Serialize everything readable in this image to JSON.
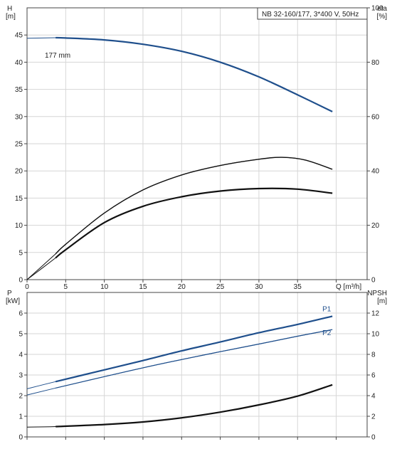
{
  "chart_data": [
    {
      "type": "line",
      "title": "NB 32-160/177, 3*400 V, 50Hz",
      "xlabel": "Q [m³/h]",
      "x_ticks": [
        0,
        5,
        10,
        15,
        20,
        25,
        30,
        35
      ],
      "xlim": [
        0,
        44
      ],
      "left_axis": {
        "label_top": "H",
        "label_unit": "[m]",
        "ylim": [
          0,
          50
        ],
        "ticks": [
          0,
          5,
          10,
          15,
          20,
          25,
          30,
          35,
          40,
          45
        ]
      },
      "right_axis": {
        "label_top": "eta",
        "label_unit": "[%]",
        "ylim": [
          0,
          100
        ],
        "ticks": [
          0,
          20,
          40,
          60,
          80,
          100
        ]
      },
      "grid": true,
      "annotations": [
        {
          "text": "177 mm"
        }
      ],
      "series": [
        {
          "axis": "left",
          "color": "#1f4f8c",
          "points": [
            [
              0,
              44.4
            ],
            [
              3.7,
              44.5
            ],
            [
              5,
              44.45
            ],
            [
              10,
              44.1
            ],
            [
              15,
              43.3
            ],
            [
              20,
              42.0
            ],
            [
              25,
              40.0
            ],
            [
              30,
              37.3
            ],
            [
              35,
              34.0
            ],
            [
              39.5,
              30.9
            ]
          ]
        },
        {
          "axis": "right",
          "color": "#111111",
          "points": [
            [
              0,
              0
            ],
            [
              3.7,
              9.5
            ],
            [
              5,
              13
            ],
            [
              10,
              24.5
            ],
            [
              15,
              33
            ],
            [
              20,
              38.5
            ],
            [
              25,
              42
            ],
            [
              30,
              44.3
            ],
            [
              33,
              45
            ],
            [
              36,
              44
            ],
            [
              39.5,
              40.6
            ]
          ]
        },
        {
          "axis": "right",
          "color": "#111111",
          "points": [
            [
              0,
              0
            ],
            [
              3.7,
              8
            ],
            [
              5,
              11
            ],
            [
              10,
              21
            ],
            [
              15,
              27
            ],
            [
              20,
              30.5
            ],
            [
              25,
              32.6
            ],
            [
              30,
              33.5
            ],
            [
              35,
              33.3
            ],
            [
              39.5,
              31.8
            ]
          ]
        }
      ]
    },
    {
      "type": "line",
      "xlim": [
        0,
        44
      ],
      "left_axis": {
        "label_top": "P",
        "label_unit": "[kW]",
        "ylim": [
          0,
          7
        ],
        "ticks": [
          0,
          1,
          2,
          3,
          4,
          5,
          6
        ]
      },
      "right_axis": {
        "label_top": "NPSH",
        "label_unit": "[m]",
        "ylim": [
          0,
          14
        ],
        "ticks": [
          0,
          2,
          4,
          6,
          8,
          10,
          12
        ]
      },
      "grid": true,
      "series": [
        {
          "name": "P1",
          "axis": "left",
          "color": "#1f4f8c",
          "points": [
            [
              0,
              2.33
            ],
            [
              3.7,
              2.68
            ],
            [
              10,
              3.25
            ],
            [
              15,
              3.7
            ],
            [
              20,
              4.17
            ],
            [
              25,
              4.6
            ],
            [
              30,
              5.05
            ],
            [
              35,
              5.45
            ],
            [
              39.5,
              5.85
            ]
          ]
        },
        {
          "name": "P2",
          "axis": "left",
          "color": "#1f4f8c",
          "points": [
            [
              0,
              2.03
            ],
            [
              3.7,
              2.37
            ],
            [
              10,
              2.92
            ],
            [
              15,
              3.35
            ],
            [
              20,
              3.75
            ],
            [
              25,
              4.13
            ],
            [
              30,
              4.5
            ],
            [
              35,
              4.88
            ],
            [
              39.5,
              5.2
            ]
          ]
        },
        {
          "axis": "right",
          "color": "#111111",
          "points": [
            [
              0,
              0.95
            ],
            [
              3.7,
              1.0
            ],
            [
              10,
              1.2
            ],
            [
              15,
              1.45
            ],
            [
              20,
              1.85
            ],
            [
              25,
              2.4
            ],
            [
              30,
              3.1
            ],
            [
              35,
              3.95
            ],
            [
              39.5,
              5.05
            ]
          ]
        }
      ]
    }
  ]
}
